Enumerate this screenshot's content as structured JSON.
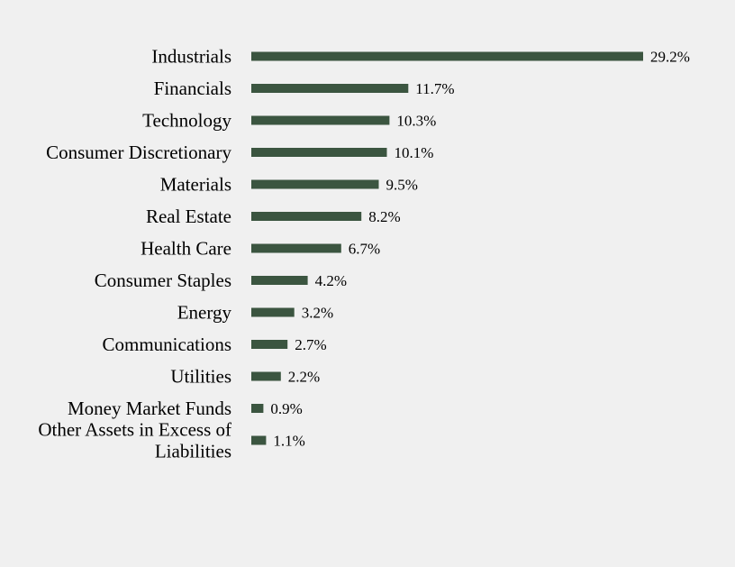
{
  "colors": {
    "background": "#f0f0f0",
    "bar": "#3b5540",
    "text": "#000000"
  },
  "chart_data": {
    "type": "bar",
    "orientation": "horizontal",
    "title": "",
    "xlabel": "",
    "ylabel": "",
    "grid": false,
    "legend": "none",
    "value_suffix": "%",
    "xlim": [
      0,
      29.2
    ],
    "categories": [
      "Industrials",
      "Financials",
      "Technology",
      "Consumer Discretionary",
      "Materials",
      "Real Estate",
      "Health Care",
      "Consumer Staples",
      "Energy",
      "Communications",
      "Utilities",
      "Money Market Funds",
      "Other Assets in Excess of Liabilities"
    ],
    "category_lines": [
      [
        "Industrials"
      ],
      [
        "Financials"
      ],
      [
        "Technology"
      ],
      [
        "Consumer Discretionary"
      ],
      [
        "Materials"
      ],
      [
        "Real Estate"
      ],
      [
        "Health Care"
      ],
      [
        "Consumer Staples"
      ],
      [
        "Energy"
      ],
      [
        "Communications"
      ],
      [
        "Utilities"
      ],
      [
        "Money Market Funds"
      ],
      [
        "Other Assets in Excess of",
        "Liabilities"
      ]
    ],
    "values": [
      29.2,
      11.7,
      10.3,
      10.1,
      9.5,
      8.2,
      6.7,
      4.2,
      3.2,
      2.7,
      2.2,
      0.9,
      1.1
    ],
    "data_labels": [
      "29.2%",
      "11.7%",
      "10.3%",
      "10.1%",
      "9.5%",
      "8.2%",
      "6.7%",
      "4.2%",
      "3.2%",
      "2.7%",
      "2.2%",
      "0.9%",
      "1.1%"
    ]
  }
}
